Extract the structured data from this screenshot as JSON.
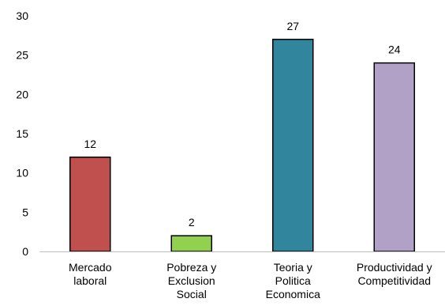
{
  "chart_data": {
    "type": "bar",
    "categories": [
      [
        "Mercado",
        "laboral"
      ],
      [
        "Pobreza y",
        "Exclusion",
        "Social"
      ],
      [
        "Teoria y",
        "Politica",
        "Economica"
      ],
      [
        "Productividad y",
        "Competitividad"
      ]
    ],
    "values": [
      12,
      2,
      27,
      24
    ],
    "colors": [
      "#c0504d",
      "#92d050",
      "#31859c",
      "#b2a1c7"
    ],
    "ylim": [
      0,
      30
    ],
    "yticks": [
      0,
      5,
      10,
      15,
      20,
      25,
      30
    ],
    "grid": false,
    "legend": "none",
    "title": "",
    "xlabel": "",
    "ylabel": ""
  }
}
